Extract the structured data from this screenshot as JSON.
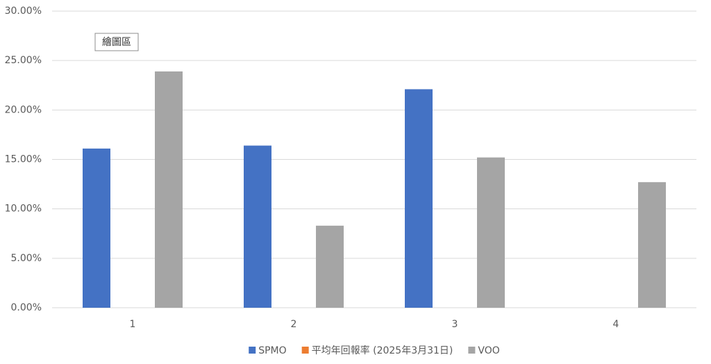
{
  "chart_data": {
    "type": "bar",
    "annotation": "繪圖區",
    "categories": [
      "1",
      "2",
      "3",
      "4"
    ],
    "series": [
      {
        "name": "SPMO",
        "color": "#4472c4",
        "values": [
          16.1,
          16.4,
          22.1,
          null
        ]
      },
      {
        "name": "平均年回報率 (2025年3月31日)",
        "color": "#ed7d31",
        "values": [
          null,
          null,
          null,
          null
        ]
      },
      {
        "name": "VOO",
        "color": "#a5a5a5",
        "values": [
          23.9,
          8.3,
          15.2,
          12.7
        ]
      }
    ],
    "ylim": [
      0,
      30
    ],
    "yticks": [
      {
        "value": 0,
        "label": "0.00%"
      },
      {
        "value": 5,
        "label": "5.00%"
      },
      {
        "value": 10,
        "label": "10.00%"
      },
      {
        "value": 15,
        "label": "15.00%"
      },
      {
        "value": 20,
        "label": "20.00%"
      },
      {
        "value": 25,
        "label": "25.00%"
      },
      {
        "value": 30,
        "label": "30.00%"
      }
    ],
    "grid": true,
    "legend": "bottom"
  }
}
